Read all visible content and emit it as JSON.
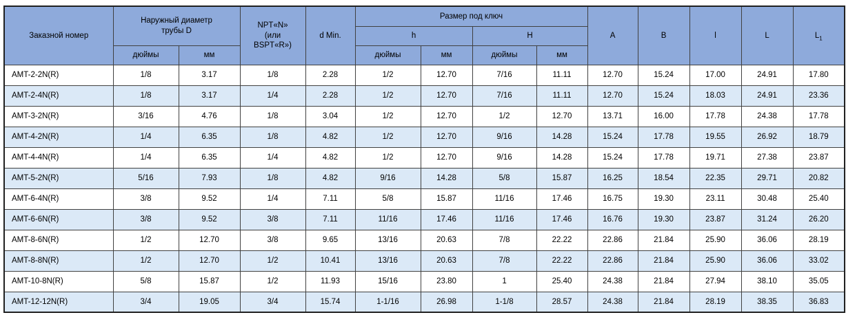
{
  "colors": {
    "header_bg": "#8EAADB",
    "row_bg": "#FFFFFF",
    "row_alt_bg": "#DBE9F7",
    "grid_border": "#404040",
    "outer_border": "#1F1F1F",
    "text": "#000000"
  },
  "table": {
    "header": {
      "order_number": "Заказной номер",
      "outer_diameter": "Наружный диаметр трубы D",
      "npt": "NPT«N» (или BSPT«R»)",
      "d_min": "d Min.",
      "wrench_size": "Размер под ключ",
      "h_small": "h",
      "h_cap": "H",
      "inches": "дюймы",
      "mm": "мм",
      "a": "A",
      "b": "B",
      "l_small": "l",
      "l_cap": "L",
      "l1_base": "L",
      "l1_sub": "1"
    },
    "rows": [
      [
        "AMT-2-2N(R)",
        "1/8",
        "3.17",
        "1/8",
        "2.28",
        "1/2",
        "12.70",
        "7/16",
        "11.11",
        "12.70",
        "15.24",
        "17.00",
        "24.91",
        "17.80"
      ],
      [
        "AMT-2-4N(R)",
        "1/8",
        "3.17",
        "1/4",
        "2.28",
        "1/2",
        "12.70",
        "7/16",
        "11.11",
        "12.70",
        "15.24",
        "18.03",
        "24.91",
        "23.36"
      ],
      [
        "AMT-3-2N(R)",
        "3/16",
        "4.76",
        "1/8",
        "3.04",
        "1/2",
        "12.70",
        "1/2",
        "12.70",
        "13.71",
        "16.00",
        "17.78",
        "24.38",
        "17.78"
      ],
      [
        "AMT-4-2N(R)",
        "1/4",
        "6.35",
        "1/8",
        "4.82",
        "1/2",
        "12.70",
        "9/16",
        "14.28",
        "15.24",
        "17.78",
        "19.55",
        "26.92",
        "18.79"
      ],
      [
        "AMT-4-4N(R)",
        "1/4",
        "6.35",
        "1/4",
        "4.82",
        "1/2",
        "12.70",
        "9/16",
        "14.28",
        "15.24",
        "17.78",
        "19.71",
        "27.38",
        "23.87"
      ],
      [
        "AMT-5-2N(R)",
        "5/16",
        "7.93",
        "1/8",
        "4.82",
        "9/16",
        "14.28",
        "5/8",
        "15.87",
        "16.25",
        "18.54",
        "22.35",
        "29.71",
        "20.82"
      ],
      [
        "AMT-6-4N(R)",
        "3/8",
        "9.52",
        "1/4",
        "7.11",
        "5/8",
        "15.87",
        "11/16",
        "17.46",
        "16.75",
        "19.30",
        "23.11",
        "30.48",
        "25.40"
      ],
      [
        "AMT-6-6N(R)",
        "3/8",
        "9.52",
        "3/8",
        "7.11",
        "11/16",
        "17.46",
        "11/16",
        "17.46",
        "16.76",
        "19.30",
        "23.87",
        "31.24",
        "26.20"
      ],
      [
        "AMT-8-6N(R)",
        "1/2",
        "12.70",
        "3/8",
        "9.65",
        "13/16",
        "20.63",
        "7/8",
        "22.22",
        "22.86",
        "21.84",
        "25.90",
        "36.06",
        "28.19"
      ],
      [
        "AMT-8-8N(R)",
        "1/2",
        "12.70",
        "1/2",
        "10.41",
        "13/16",
        "20.63",
        "7/8",
        "22.22",
        "22.86",
        "21.84",
        "25.90",
        "36.06",
        "33.02"
      ],
      [
        "AMT-10-8N(R)",
        "5/8",
        "15.87",
        "1/2",
        "11.93",
        "15/16",
        "23.80",
        "1",
        "25.40",
        "24.38",
        "21.84",
        "27.94",
        "38.10",
        "35.05"
      ],
      [
        "AMT-12-12N(R)",
        "3/4",
        "19.05",
        "3/4",
        "15.74",
        "1-1/16",
        "26.98",
        "1-1/8",
        "28.57",
        "24.38",
        "21.84",
        "28.19",
        "38.35",
        "36.83"
      ]
    ]
  }
}
